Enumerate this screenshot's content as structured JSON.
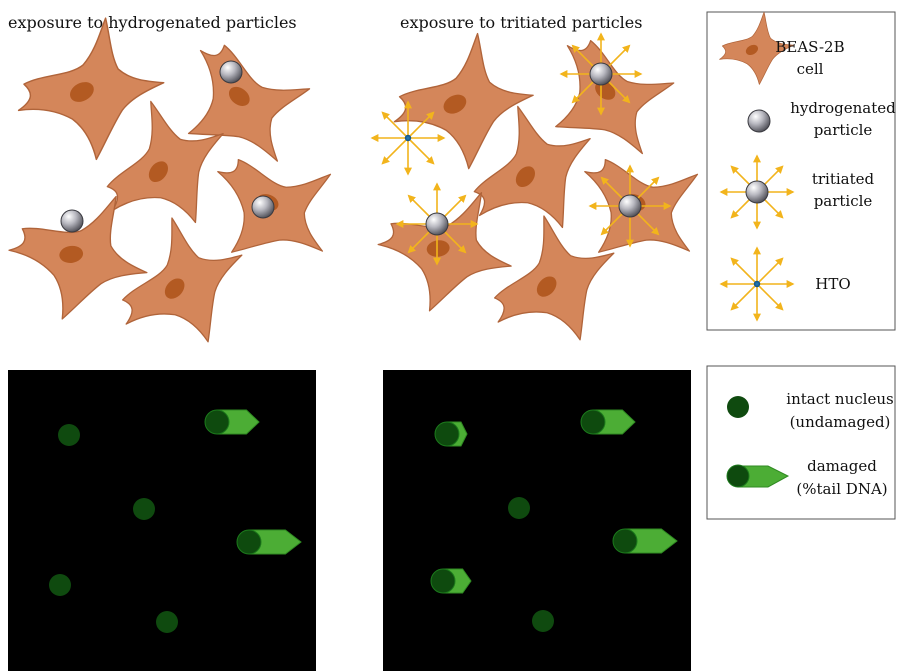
{
  "panels": {
    "hydrogenated_title": "exposure to hydrogenated particles",
    "tritiated_title": "exposure to tritiated particles"
  },
  "legend_top": {
    "cell_line1": "BEAS-2B",
    "cell_line2": "cell",
    "hydro_line1": "hydrogenated",
    "hydro_line2": "particle",
    "trit_line1": "tritiated",
    "trit_line2": "particle",
    "hto": "HTO"
  },
  "legend_bottom": {
    "intact_line1": "intact nucleus",
    "intact_line2": "(undamaged)",
    "damaged_line1": "damaged",
    "damaged_line2": "(%tail DNA)"
  },
  "colors": {
    "cell": "#d4865a",
    "nucleus": "#b35a22",
    "ray": "#f2b41c",
    "comet_head": "#0e4a0e",
    "comet_tail": "#4cad35",
    "background_panel": "#000000"
  }
}
